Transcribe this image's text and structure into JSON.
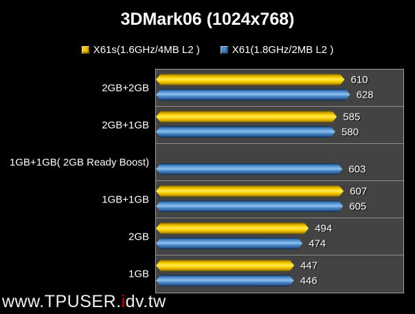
{
  "chart_data": {
    "type": "bar",
    "orientation": "horizontal",
    "title": "3DMark06 (1024x768)",
    "categories": [
      "2GB+2GB",
      "2GB+1GB",
      "1GB+1GB( 2GB Ready Boost)",
      "1GB+1GB",
      "2GB",
      "1GB"
    ],
    "series": [
      {
        "name": "X61s(1.6GHz/4MB L2 )",
        "color": "#f5c400",
        "values": [
          610,
          585,
          null,
          607,
          494,
          447
        ]
      },
      {
        "name": "X61(1.8GHz/2MB L2 )",
        "color": "#4a86c8",
        "values": [
          628,
          580,
          603,
          605,
          474,
          446
        ]
      }
    ],
    "xlim": [
      0,
      800
    ],
    "grid": "category-dividers",
    "legend_position": "top-center",
    "value_labels": "outside-end",
    "colors": {
      "background": "#000000",
      "plot_background": "#434343",
      "plot_border": "#a2a2a2",
      "gridline": "#8f8f8f",
      "text": "#ffffff"
    }
  },
  "watermark": {
    "prefix": "www.TPUSER.",
    "highlight": "i",
    "suffix": "dv.tw",
    "highlight_color": "#e60000"
  }
}
